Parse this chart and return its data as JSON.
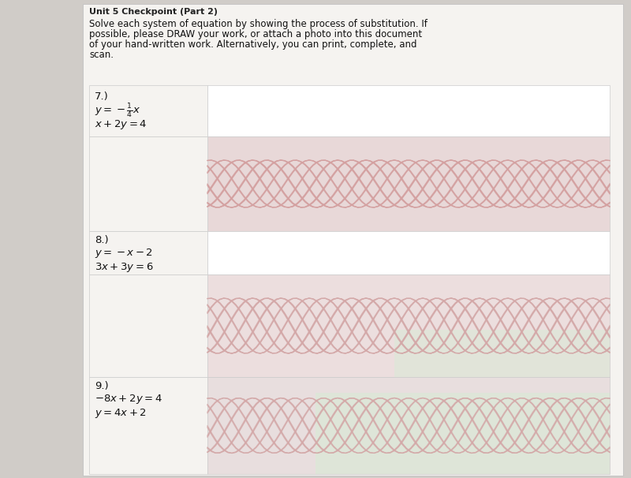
{
  "bg_color": "#d0ccc8",
  "paper_color": "#f5f3f0",
  "white_box_color": "#ffffff",
  "pink_stripe_color": "#e8d0d0",
  "header_text": "Solve each system of equation by showing the process of substitution. If\npossible, please DRAW your work, or attach a photo into this document\nof your hand-written work. Alternatively, you can print, complete, and\nscan.",
  "title_partial": "Unit 5 Checkpoint (Part 2)",
  "problem7_num": "7.)",
  "problem7_eq1": "$y = -\\frac{1}{4}x$",
  "problem7_eq2": "$x + 2y = 4$",
  "problem8_num": "8.)",
  "problem8_eq1": "$y = -x - 2$",
  "problem8_eq2": "$3x + 3y = 6$",
  "problem9_num": "9.)",
  "problem9_eq1": "$-8x + 2y = 4$",
  "problem9_eq2": "$y = 4x + 2$",
  "font_size_header": 8.5,
  "font_size_problems": 9.5,
  "font_size_num": 9.5,
  "text_color": "#111111",
  "title_color": "#222222"
}
